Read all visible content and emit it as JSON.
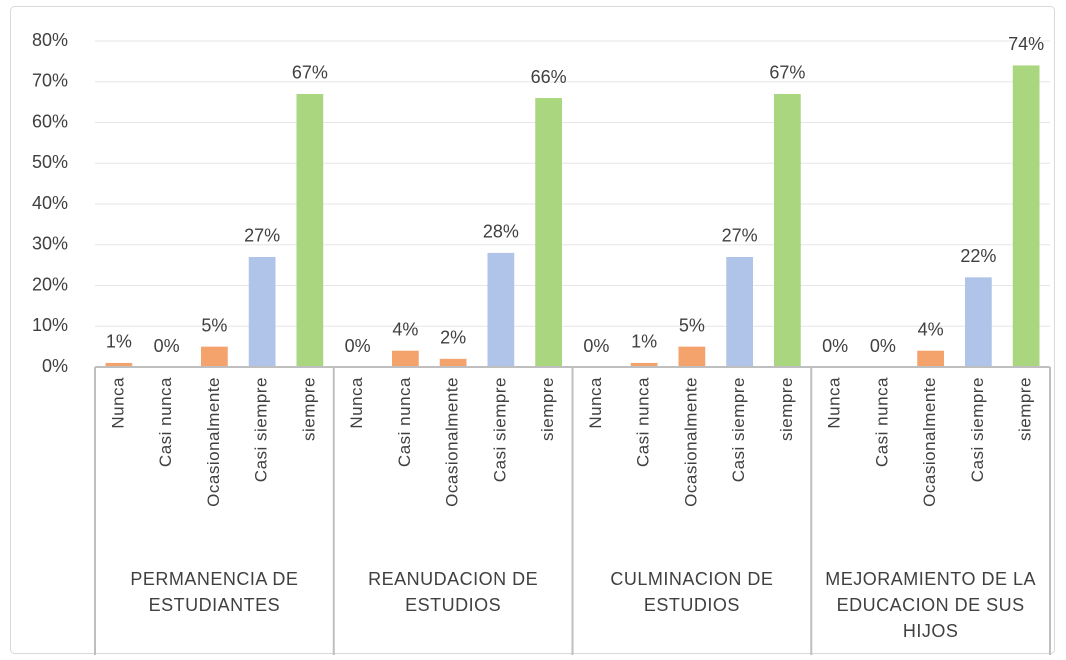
{
  "chart_data": {
    "type": "bar",
    "groups": [
      {
        "name": "PERMANENCIA DE ESTUDIANTES",
        "categories": [
          "Nunca",
          "Casi nunca",
          "Ocasionalmente",
          "Casi siempre",
          "siempre"
        ],
        "values": [
          1,
          0,
          5,
          27,
          67
        ],
        "value_labels": [
          "1%",
          "0%",
          "5%",
          "27%",
          "67%"
        ]
      },
      {
        "name": "REANUDACION DE ESTUDIOS",
        "categories": [
          "Nunca",
          "Casi nunca",
          "Ocasionalmente",
          "Casi siempre",
          "siempre"
        ],
        "values": [
          0,
          4,
          2,
          28,
          66
        ],
        "value_labels": [
          "0%",
          "4%",
          "2%",
          "28%",
          "66%"
        ]
      },
      {
        "name": "CULMINACION DE ESTUDIOS",
        "categories": [
          "Nunca",
          "Casi nunca",
          "Ocasionalmente",
          "Casi siempre",
          "siempre"
        ],
        "values": [
          0,
          1,
          5,
          27,
          67
        ],
        "value_labels": [
          "0%",
          "1%",
          "5%",
          "27%",
          "67%"
        ]
      },
      {
        "name": "MEJORAMIENTO DE LA EDUCACION DE SUS HIJOS",
        "categories": [
          "Nunca",
          "Casi nunca",
          "Ocasionalmente",
          "Casi siempre",
          "siempre"
        ],
        "values": [
          0,
          0,
          4,
          22,
          74
        ],
        "value_labels": [
          "0%",
          "0%",
          "4%",
          "22%",
          "74%"
        ]
      }
    ],
    "colors": [
      "#f4a36c",
      "#f4a36c",
      "#f4a36c",
      "#b0c3e8",
      "#a9d67f"
    ],
    "ylim": [
      0,
      80
    ],
    "yticks": [
      {
        "value": 0,
        "label": "0%"
      },
      {
        "value": 10,
        "label": "10%"
      },
      {
        "value": 20,
        "label": "20%"
      },
      {
        "value": 30,
        "label": "30%"
      },
      {
        "value": 40,
        "label": "40%"
      },
      {
        "value": 50,
        "label": "50%"
      },
      {
        "value": 60,
        "label": "60%"
      },
      {
        "value": 70,
        "label": "70%"
      },
      {
        "value": 80,
        "label": "80%"
      }
    ],
    "grid": true
  }
}
